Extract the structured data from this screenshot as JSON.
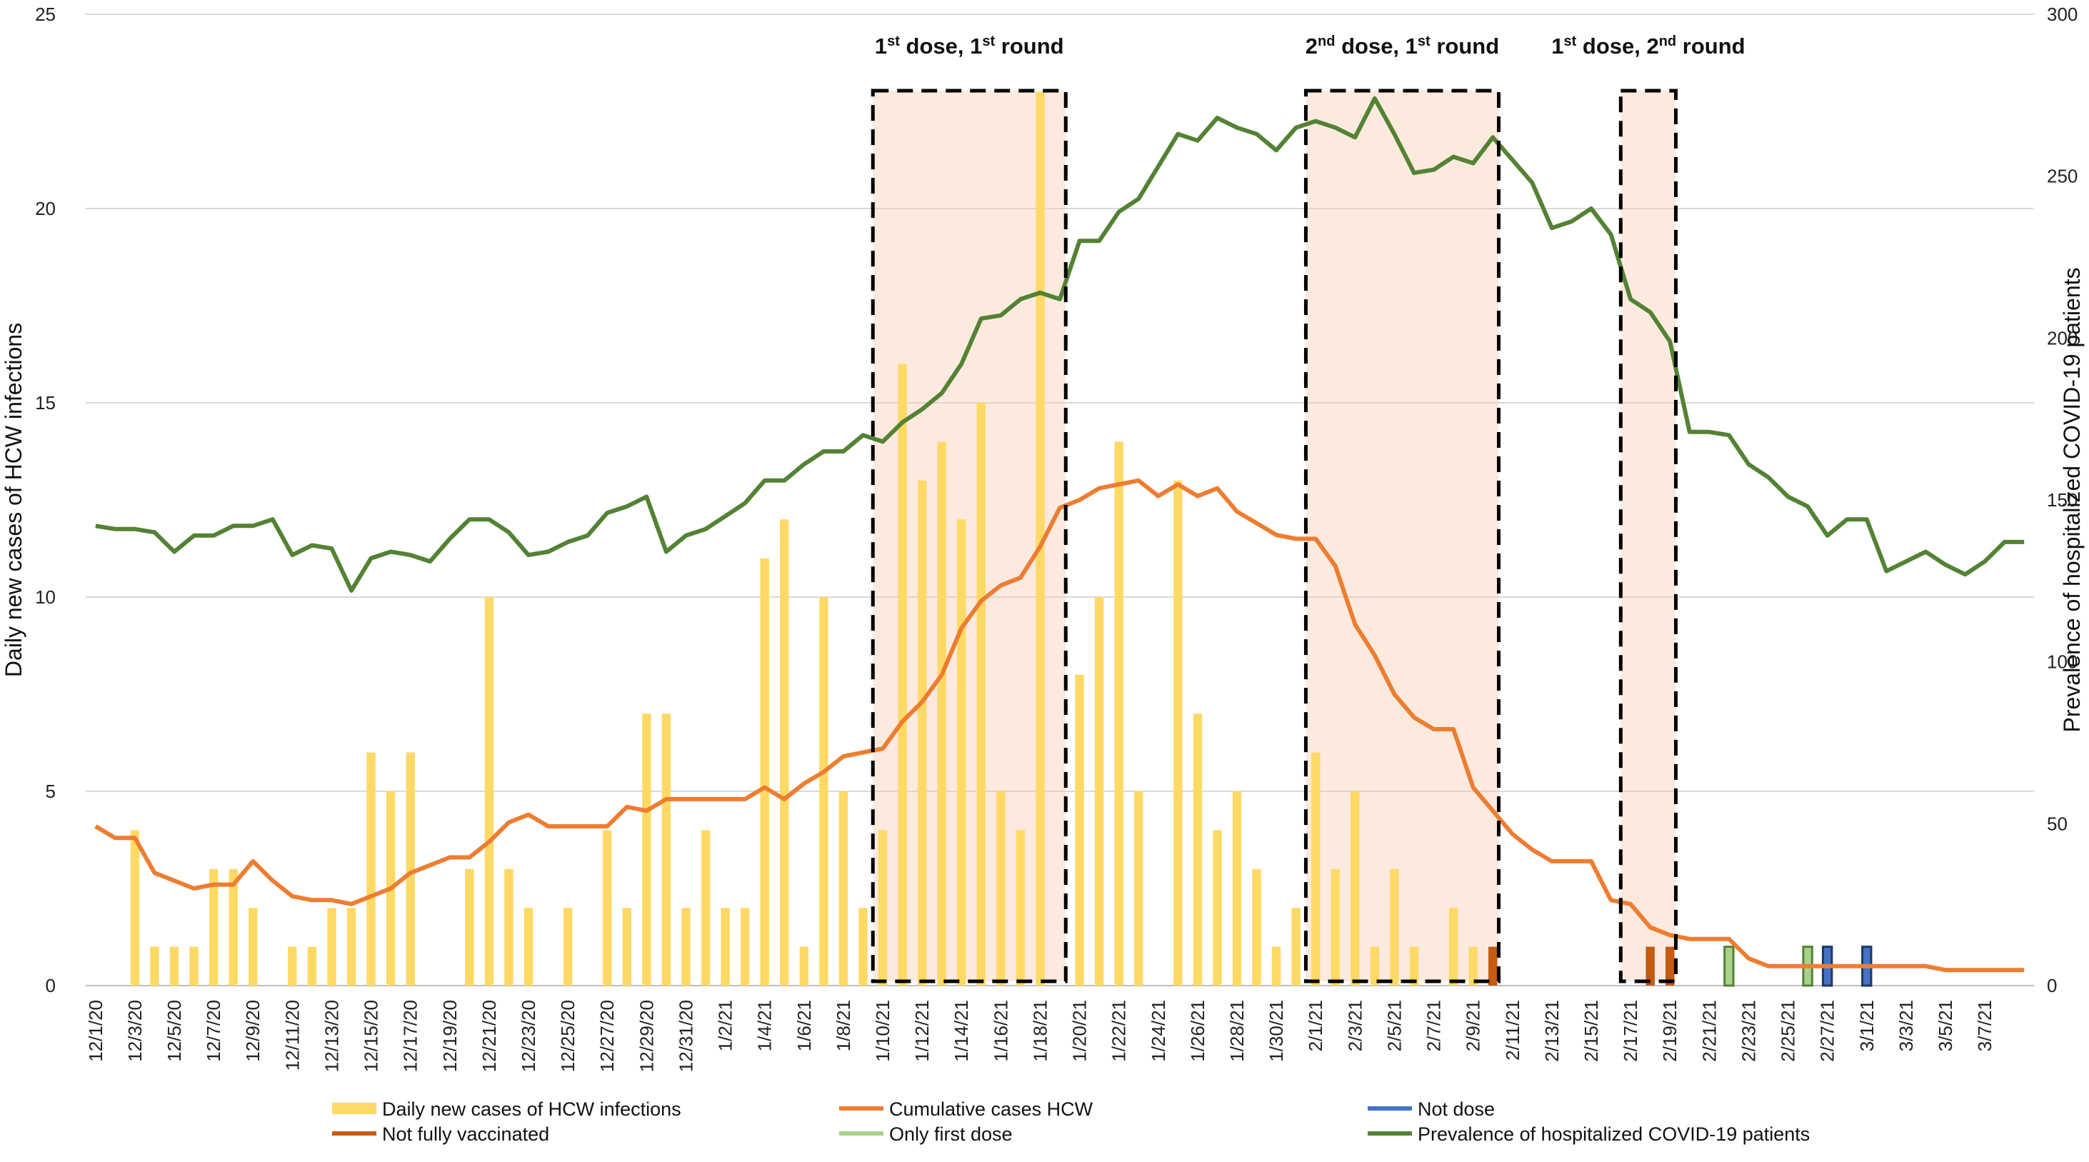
{
  "chart_data": {
    "type": "bar+line",
    "left_axis": {
      "label": "Daily new cases of HCW infections",
      "range": [
        0,
        25
      ],
      "ticks": [
        "0",
        "5",
        "10",
        "15",
        "20",
        "25"
      ]
    },
    "right_axis": {
      "label": "Prevalence of hospitalized COVID-19 patients",
      "range": [
        0,
        300
      ],
      "ticks": [
        "0",
        "50",
        "100",
        "150",
        "200",
        "250",
        "300"
      ]
    },
    "x_labels": [
      "12/1/20",
      "12/3/20",
      "12/5/20",
      "12/7/20",
      "12/9/20",
      "12/11/20",
      "12/13/20",
      "12/15/20",
      "12/17/20",
      "12/19/20",
      "12/21/20",
      "12/23/20",
      "12/25/20",
      "12/27/20",
      "12/29/20",
      "12/31/20",
      "1/2/21",
      "1/4/21",
      "1/6/21",
      "1/8/21",
      "1/10/21",
      "1/12/21",
      "1/14/21",
      "1/16/21",
      "1/18/21",
      "1/20/21",
      "1/22/21",
      "1/24/21",
      "1/26/21",
      "1/28/21",
      "1/30/21",
      "2/1/21",
      "2/3/21",
      "2/5/21",
      "2/7/21",
      "2/9/21",
      "2/11/21",
      "2/13/21",
      "2/15/21",
      "2/17/21",
      "2/19/21",
      "2/21/21",
      "2/23/21",
      "2/25/21",
      "2/27/21",
      "3/1/21",
      "3/3/21",
      "3/5/21",
      "3/7/21"
    ],
    "grid": true,
    "legend_position": "bottom",
    "series": [
      {
        "name": "Daily new cases of HCW infections",
        "kind": "bar",
        "axis": "left",
        "color": "#FFD966",
        "values": [
          0,
          0,
          4,
          1,
          1,
          1,
          3,
          3,
          2,
          0,
          1,
          1,
          2,
          2,
          6,
          5,
          6,
          0,
          0,
          3,
          10,
          3,
          2,
          0,
          2,
          0,
          4,
          2,
          7,
          7,
          2,
          4,
          2,
          2,
          11,
          12,
          1,
          10,
          5,
          2,
          4,
          16,
          13,
          14,
          12,
          15,
          5,
          4,
          23,
          0,
          8,
          10,
          14,
          5,
          0,
          13,
          7,
          4,
          5,
          3,
          1,
          2,
          6,
          3,
          5,
          1,
          3,
          1,
          0,
          2,
          1,
          1,
          0,
          0,
          0,
          0,
          0,
          0,
          0,
          0,
          0,
          0,
          0,
          0,
          0,
          0,
          0,
          0,
          0,
          0,
          0,
          0,
          0,
          0,
          0,
          0,
          0,
          0,
          0
        ]
      },
      {
        "name": "Cumulative cases HCW",
        "kind": "line",
        "axis": "left",
        "color": "#ED7D31",
        "values": [
          4.1,
          3.8,
          3.8,
          2.9,
          2.7,
          2.5,
          2.6,
          2.6,
          3.2,
          2.7,
          2.3,
          2.2,
          2.2,
          2.1,
          2.3,
          2.5,
          2.9,
          3.1,
          3.3,
          3.3,
          3.7,
          4.2,
          4.4,
          4.1,
          4.1,
          4.1,
          4.1,
          4.6,
          4.5,
          4.8,
          4.8,
          4.8,
          4.8,
          4.8,
          5.1,
          4.8,
          5.2,
          5.5,
          5.9,
          6.0,
          6.1,
          6.8,
          7.3,
          8.0,
          9.2,
          9.9,
          10.3,
          10.5,
          11.3,
          12.3,
          12.5,
          12.8,
          12.9,
          13.0,
          12.6,
          12.9,
          12.6,
          12.8,
          12.2,
          11.9,
          11.6,
          11.5,
          11.5,
          10.8,
          9.3,
          8.5,
          7.5,
          6.9,
          6.6,
          6.6,
          5.1,
          4.5,
          3.9,
          3.5,
          3.2,
          3.2,
          3.2,
          2.2,
          2.1,
          1.5,
          1.3,
          1.2,
          1.2,
          1.2,
          0.7,
          0.5,
          0.5,
          0.5,
          0.5,
          0.5,
          0.5,
          0.5,
          0.5,
          0.5,
          0.4,
          0.4,
          0.4,
          0.4,
          0.4
        ]
      },
      {
        "name": "Not dose",
        "kind": "bar",
        "axis": "left",
        "color": "#4472C4",
        "values": [
          0,
          0,
          0,
          0,
          0,
          0,
          0,
          0,
          0,
          0,
          0,
          0,
          0,
          0,
          0,
          0,
          0,
          0,
          0,
          0,
          0,
          0,
          0,
          0,
          0,
          0,
          0,
          0,
          0,
          0,
          0,
          0,
          0,
          0,
          0,
          0,
          0,
          0,
          0,
          0,
          0,
          0,
          0,
          0,
          0,
          0,
          0,
          0,
          0,
          0,
          0,
          0,
          0,
          0,
          0,
          0,
          0,
          0,
          0,
          0,
          0,
          0,
          0,
          0,
          0,
          0,
          0,
          0,
          0,
          0,
          0,
          0,
          0,
          0,
          0,
          0,
          0,
          0,
          0,
          0,
          0,
          0,
          0,
          0,
          0,
          0,
          0,
          0,
          0,
          1,
          0,
          0,
          0,
          0,
          0,
          0,
          0,
          0,
          0
        ]
      },
      {
        "name": "Not fully  vaccinated",
        "kind": "bar",
        "axis": "left",
        "color": "#C55A11",
        "values": [
          0,
          0,
          0,
          0,
          0,
          0,
          0,
          0,
          0,
          0,
          0,
          0,
          0,
          0,
          0,
          0,
          0,
          0,
          0,
          0,
          0,
          0,
          0,
          0,
          0,
          0,
          0,
          0,
          0,
          0,
          0,
          0,
          0,
          0,
          0,
          0,
          0,
          0,
          0,
          0,
          0,
          0,
          0,
          0,
          0,
          0,
          0,
          0,
          0,
          0,
          0,
          0,
          0,
          0,
          0,
          0,
          0,
          0,
          0,
          0,
          0,
          0,
          0,
          0,
          0,
          0,
          0,
          0,
          0,
          0,
          0,
          0,
          0,
          0,
          0,
          0,
          0,
          0,
          0,
          0,
          0,
          0,
          0,
          0,
          0,
          0,
          0,
          0,
          0,
          0,
          0,
          0,
          0,
          0,
          0,
          0,
          0,
          0,
          0
        ]
      },
      {
        "name": "Only first dose",
        "kind": "bar",
        "axis": "left",
        "color": "#A9D18E",
        "values": [
          0,
          0,
          0,
          0,
          0,
          0,
          0,
          0,
          0,
          0,
          0,
          0,
          0,
          0,
          0,
          0,
          0,
          0,
          0,
          0,
          0,
          0,
          0,
          0,
          0,
          0,
          0,
          0,
          0,
          0,
          0,
          0,
          0,
          0,
          0,
          0,
          0,
          0,
          0,
          0,
          0,
          0,
          0,
          0,
          0,
          0,
          0,
          0,
          0,
          0,
          0,
          0,
          0,
          0,
          0,
          0,
          0,
          0,
          0,
          0,
          0,
          0,
          0,
          0,
          0,
          0,
          0,
          0,
          0,
          0,
          0,
          0,
          0,
          0,
          0,
          0,
          0,
          0,
          0,
          0,
          0,
          0,
          0,
          0,
          0,
          0,
          0,
          0,
          0,
          0,
          0,
          0,
          0,
          0,
          0,
          0,
          0,
          0,
          0
        ]
      },
      {
        "name": "Prevalence of hospitalized COVID-19 patients",
        "kind": "line",
        "axis": "right",
        "color": "#548235",
        "values": [
          142,
          141,
          141,
          140,
          134,
          139,
          139,
          142,
          142,
          144,
          133,
          136,
          135,
          122,
          132,
          134,
          133,
          131,
          138,
          144,
          144,
          140,
          133,
          134,
          137,
          139,
          146,
          148,
          151,
          134,
          139,
          141,
          145,
          149,
          156,
          156,
          161,
          165,
          165,
          170,
          168,
          174,
          178,
          183,
          192,
          206,
          207,
          212,
          214,
          212,
          230,
          230,
          239,
          243,
          253,
          263,
          261,
          268,
          265,
          263,
          258,
          265,
          267,
          265,
          262,
          274,
          263,
          251,
          252,
          256,
          254,
          262,
          255,
          248,
          234,
          236,
          240,
          232,
          212,
          208,
          199,
          171,
          171,
          170,
          161,
          157,
          151,
          148,
          139,
          144,
          144,
          128,
          131,
          134,
          130,
          127,
          131,
          137,
          137
        ]
      }
    ],
    "markers": {
      "not_fully_vaccinated_days": [
        71,
        79,
        80
      ],
      "only_first_dose_days": [
        83,
        87
      ],
      "not_dose_days": [
        88,
        90
      ],
      "not_dose_first_dose_day": 88
    },
    "annotations": [
      {
        "id": "r1",
        "main": "1",
        "sup": "st",
        "mid": " dose, 1",
        "sup2": "st",
        "tail": " round",
        "x_start": 40,
        "x_end": 49
      },
      {
        "id": "r2",
        "main": "2",
        "sup": "nd",
        "mid": " dose, 1",
        "sup2": "st",
        "tail": " round",
        "x_start": 62,
        "x_end": 71
      },
      {
        "id": "r3",
        "main": "1",
        "sup": "st",
        "mid": " dose, 2",
        "sup2": "nd",
        "tail": " round",
        "x_start": 78,
        "x_end": 80
      }
    ]
  }
}
